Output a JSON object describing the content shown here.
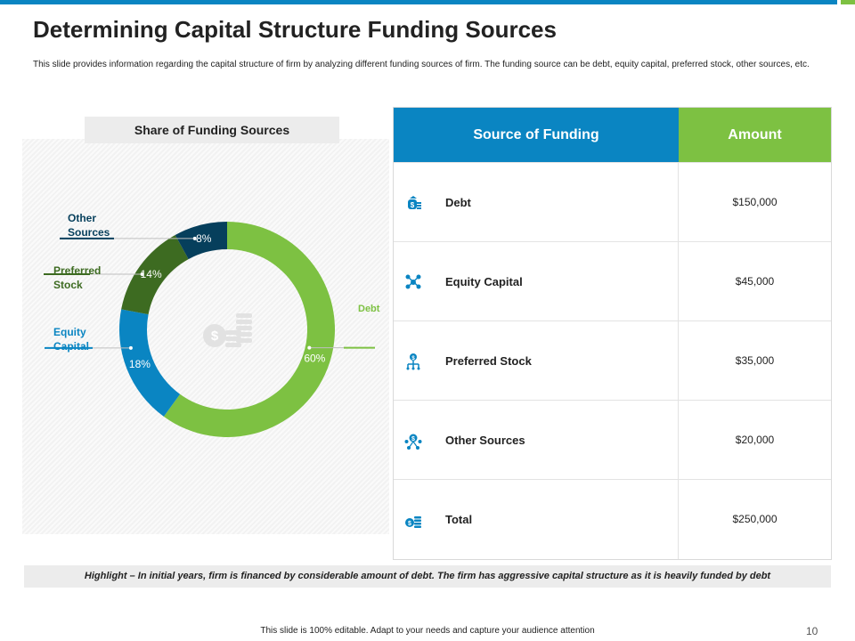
{
  "slide": {
    "title": "Determining Capital Structure Funding Sources",
    "description": "This slide provides information regarding the capital structure of firm by analyzing different funding sources of firm. The funding source can be debt, equity capital, preferred stock, other sources, etc.",
    "highlight": "Highlight – In initial years, firm is financed by considerable amount of debt. The firm has aggressive capital structure as it is heavily funded by debt",
    "footer": "This slide is 100% editable.  Adapt to your needs and capture your audience attention",
    "page_number": "10"
  },
  "chart_data": {
    "type": "pie",
    "title": "Share of Funding Sources",
    "categories": [
      "Debt",
      "Equity Capital",
      "Preferred Stock",
      "Other Sources"
    ],
    "values": [
      60,
      18,
      14,
      8
    ],
    "value_labels": [
      "60%",
      "18%",
      "14%",
      "8%"
    ],
    "callout_labels": [
      "Debt",
      "Equity\nCapital",
      "Preferred\nStock",
      "Other\nSources"
    ],
    "colors": [
      "#7dc142",
      "#0a85c2",
      "#3d6b21",
      "#063f5c"
    ],
    "center_icon": "money-coins-icon",
    "hole": "donut"
  },
  "table": {
    "headers": {
      "source": "Source of Funding",
      "amount": "Amount"
    },
    "header_colors": {
      "source": "#0a85c2",
      "amount": "#7dc142"
    },
    "rows": [
      {
        "icon": "money-bag-icon",
        "label": "Debt",
        "amount": "$150,000"
      },
      {
        "icon": "people-network-icon",
        "label": "Equity Capital",
        "amount": "$45,000"
      },
      {
        "icon": "dollar-hierarchy-icon",
        "label": "Preferred Stock",
        "amount": "$35,000"
      },
      {
        "icon": "dollar-network-icon",
        "label": "Other Sources",
        "amount": "$20,000"
      },
      {
        "icon": "coins-dollar-icon",
        "label": "Total",
        "amount": "$250,000"
      }
    ]
  }
}
